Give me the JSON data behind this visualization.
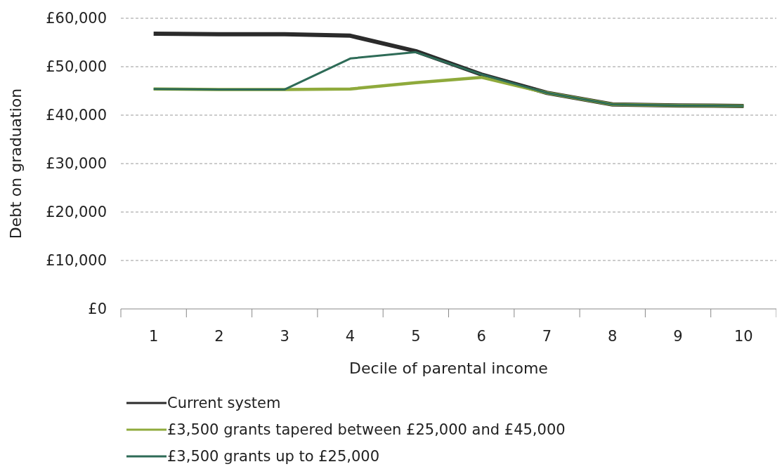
{
  "chart_data": {
    "type": "line",
    "xlabel": "Decile of parental income",
    "ylabel": "Debt on graduation",
    "categories": [
      "1",
      "2",
      "3",
      "4",
      "5",
      "6",
      "7",
      "8",
      "9",
      "10"
    ],
    "ylim": [
      0,
      60000
    ],
    "yticks": [
      {
        "value": 0,
        "label": "£0"
      },
      {
        "value": 10000,
        "label": "£10,000"
      },
      {
        "value": 20000,
        "label": "£20,000"
      },
      {
        "value": 30000,
        "label": "£30,000"
      },
      {
        "value": 40000,
        "label": "£40,000"
      },
      {
        "value": 50000,
        "label": "£50,000"
      },
      {
        "value": 60000,
        "label": "£60,000"
      }
    ],
    "grid": "y",
    "legend": "bottom",
    "marker": "none",
    "line_style": "solid",
    "series": [
      {
        "name": "Current system",
        "color": "#2b2b2b",
        "values": [
          56800,
          56700,
          56700,
          56400,
          53200,
          48400,
          44600,
          42200,
          42000,
          41900
        ]
      },
      {
        "name": "£3,500 grants tapered between £25,000 and £45,000",
        "color": "#8faa3c",
        "values": [
          45400,
          45300,
          45300,
          45400,
          46700,
          47800,
          44600,
          42200,
          42000,
          41900
        ]
      },
      {
        "name": "£3,500 grants up to £25,000",
        "color": "#2e6b57",
        "values": [
          45400,
          45300,
          45300,
          51700,
          53000,
          48400,
          44600,
          42200,
          42000,
          41900
        ]
      }
    ]
  }
}
